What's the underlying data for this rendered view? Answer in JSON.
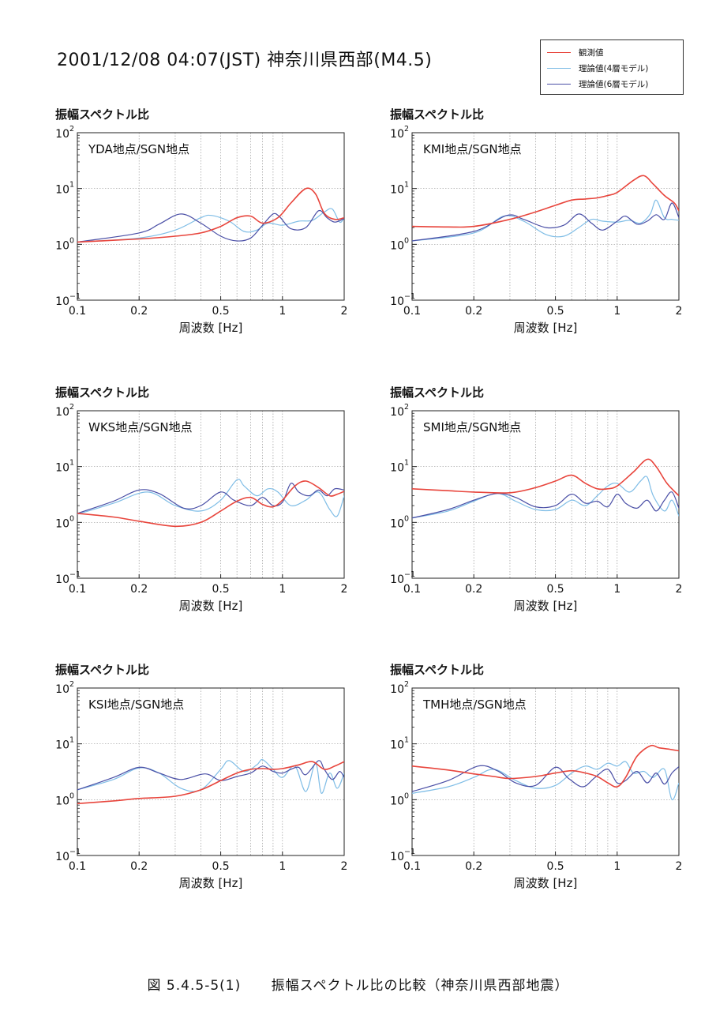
{
  "header": {
    "title": "2001/12/08  04:07(JST)  神奈川県西部(M4.5)"
  },
  "legend": [
    {
      "label": "観測値",
      "color": "#e8453c"
    },
    {
      "label": "理論値(4層モデル)",
      "color": "#7fbde6"
    },
    {
      "label": "理論値(6層モデル)",
      "color": "#4a4fa6"
    }
  ],
  "caption": "図 5.4.5-5(1)      振幅スペクトル比の比較（神奈川県西部地震）",
  "chart_data": [
    {
      "type": "line",
      "ylabel": "振幅スペクトル比",
      "xlabel": "周波数 [Hz]",
      "annotation": "YDA地点/SGN地点",
      "xscale": "log",
      "yscale": "log",
      "xlim": [
        0.1,
        2
      ],
      "ylim": [
        0.1,
        100
      ],
      "xticks": [
        0.1,
        0.2,
        0.5,
        1,
        2
      ],
      "xtick_labels": [
        "0.1",
        "0.2",
        "0.5",
        "1",
        "2"
      ],
      "ytick_labels": [
        "10",
        "10",
        "10",
        "10"
      ],
      "ytick_exponents": [
        "−1",
        "0",
        "1",
        "2"
      ],
      "grid": true,
      "series": [
        {
          "name": "観測値",
          "x": [
            0.1,
            0.2,
            0.3,
            0.4,
            0.5,
            0.6,
            0.7,
            0.8,
            0.95,
            1.1,
            1.3,
            1.45,
            1.6,
            1.8,
            2.0
          ],
          "y": [
            1.1,
            1.25,
            1.4,
            1.6,
            2.1,
            3.0,
            3.2,
            2.4,
            3.0,
            5.5,
            10.0,
            8.0,
            3.6,
            2.8,
            3.0
          ]
        },
        {
          "name": "理論値(4層モデル)",
          "x": [
            0.1,
            0.2,
            0.3,
            0.4,
            0.45,
            0.55,
            0.65,
            0.75,
            0.85,
            1.0,
            1.2,
            1.4,
            1.6,
            1.75,
            1.9,
            2.0
          ],
          "y": [
            1.1,
            1.3,
            1.8,
            3.0,
            3.3,
            2.6,
            1.7,
            1.8,
            2.4,
            2.2,
            2.6,
            2.7,
            3.8,
            4.3,
            2.5,
            3.0
          ]
        },
        {
          "name": "理論値(6層モデル)",
          "x": [
            0.1,
            0.2,
            0.25,
            0.32,
            0.4,
            0.5,
            0.6,
            0.7,
            0.8,
            0.9,
            0.97,
            1.1,
            1.3,
            1.5,
            1.65,
            1.8,
            2.0
          ],
          "y": [
            1.1,
            1.6,
            2.3,
            3.5,
            2.4,
            1.4,
            1.15,
            1.3,
            2.2,
            3.5,
            3.1,
            1.9,
            2.0,
            4.0,
            3.0,
            2.5,
            2.9
          ]
        }
      ]
    },
    {
      "type": "line",
      "ylabel": "振幅スペクトル比",
      "xlabel": "周波数 [Hz]",
      "annotation": "KMI地点/SGN地点",
      "xscale": "log",
      "yscale": "log",
      "xlim": [
        0.1,
        2
      ],
      "ylim": [
        0.1,
        100
      ],
      "xticks": [
        0.1,
        0.2,
        0.5,
        1,
        2
      ],
      "xtick_labels": [
        "0.1",
        "0.2",
        "0.5",
        "1",
        "2"
      ],
      "ytick_labels": [
        "10",
        "10",
        "10",
        "10"
      ],
      "ytick_exponents": [
        "−1",
        "0",
        "1",
        "2"
      ],
      "grid": true,
      "series": [
        {
          "name": "観測値",
          "x": [
            0.1,
            0.15,
            0.2,
            0.3,
            0.4,
            0.5,
            0.6,
            0.7,
            0.8,
            0.9,
            1.0,
            1.2,
            1.35,
            1.5,
            1.7,
            1.9,
            2.0
          ],
          "y": [
            2.1,
            2.05,
            2.1,
            2.8,
            3.8,
            5.0,
            6.2,
            6.5,
            6.8,
            7.5,
            8.5,
            14.0,
            17.0,
            12.0,
            7.5,
            5.5,
            4.0
          ]
        },
        {
          "name": "理論値(4層モデル)",
          "x": [
            0.1,
            0.2,
            0.28,
            0.35,
            0.45,
            0.55,
            0.65,
            0.75,
            0.85,
            1.0,
            1.15,
            1.3,
            1.45,
            1.55,
            1.7,
            1.85,
            2.0
          ],
          "y": [
            1.15,
            1.6,
            3.2,
            2.6,
            1.5,
            1.4,
            2.0,
            2.8,
            2.6,
            2.5,
            2.7,
            2.4,
            3.5,
            6.2,
            3.0,
            2.8,
            2.7
          ]
        },
        {
          "name": "理論値(6層モデル)",
          "x": [
            0.1,
            0.2,
            0.29,
            0.35,
            0.45,
            0.55,
            0.65,
            0.75,
            0.85,
            1.0,
            1.1,
            1.25,
            1.4,
            1.55,
            1.7,
            1.85,
            2.0
          ],
          "y": [
            1.15,
            1.7,
            3.3,
            2.8,
            2.0,
            2.2,
            3.5,
            2.4,
            1.8,
            2.6,
            3.2,
            2.3,
            2.6,
            3.4,
            2.8,
            5.5,
            3.0
          ]
        }
      ]
    },
    {
      "type": "line",
      "ylabel": "振幅スペクトル比",
      "xlabel": "周波数 [Hz]",
      "annotation": "WKS地点/SGN地点",
      "xscale": "log",
      "yscale": "log",
      "xlim": [
        0.1,
        2
      ],
      "ylim": [
        0.1,
        100
      ],
      "xticks": [
        0.1,
        0.2,
        0.5,
        1,
        2
      ],
      "xtick_labels": [
        "0.1",
        "0.2",
        "0.5",
        "1",
        "2"
      ],
      "ytick_labels": [
        "10",
        "10",
        "10",
        "10"
      ],
      "ytick_exponents": [
        "−1",
        "0",
        "1",
        "2"
      ],
      "grid": true,
      "series": [
        {
          "name": "観測値",
          "x": [
            0.1,
            0.15,
            0.2,
            0.3,
            0.4,
            0.5,
            0.6,
            0.7,
            0.8,
            0.9,
            1.0,
            1.15,
            1.3,
            1.5,
            1.7,
            1.85,
            2.0
          ],
          "y": [
            1.45,
            1.25,
            1.05,
            0.85,
            1.0,
            1.6,
            2.4,
            2.8,
            2.1,
            1.9,
            2.5,
            4.5,
            5.5,
            4.2,
            3.0,
            3.2,
            3.6
          ]
        },
        {
          "name": "理論値(4層モデル)",
          "x": [
            0.1,
            0.15,
            0.22,
            0.3,
            0.4,
            0.5,
            0.6,
            0.65,
            0.75,
            0.85,
            0.95,
            1.1,
            1.3,
            1.5,
            1.7,
            1.85,
            2.0
          ],
          "y": [
            1.4,
            2.2,
            3.5,
            2.0,
            1.6,
            2.5,
            5.8,
            4.5,
            3.0,
            4.0,
            3.5,
            2.0,
            2.5,
            3.5,
            1.7,
            1.3,
            3.0
          ]
        },
        {
          "name": "理論値(6層モデル)",
          "x": [
            0.1,
            0.15,
            0.2,
            0.25,
            0.33,
            0.4,
            0.5,
            0.58,
            0.7,
            0.8,
            0.9,
            1.0,
            1.1,
            1.2,
            1.35,
            1.5,
            1.65,
            1.8,
            2.0
          ],
          "y": [
            1.45,
            2.4,
            3.8,
            3.3,
            1.8,
            2.0,
            3.5,
            2.5,
            2.0,
            2.8,
            2.0,
            2.3,
            5.0,
            3.5,
            3.0,
            3.8,
            3.0,
            4.0,
            3.8
          ]
        }
      ]
    },
    {
      "type": "line",
      "ylabel": "振幅スペクトル比",
      "xlabel": "周波数 [Hz]",
      "annotation": "SMI地点/SGN地点",
      "xscale": "log",
      "yscale": "log",
      "xlim": [
        0.1,
        2
      ],
      "ylim": [
        0.1,
        100
      ],
      "xticks": [
        0.1,
        0.2,
        0.5,
        1,
        2
      ],
      "xtick_labels": [
        "0.1",
        "0.2",
        "0.5",
        "1",
        "2"
      ],
      "ytick_labels": [
        "10",
        "10",
        "10",
        "10"
      ],
      "ytick_exponents": [
        "−1",
        "0",
        "1",
        "2"
      ],
      "grid": true,
      "series": [
        {
          "name": "観測値",
          "x": [
            0.1,
            0.15,
            0.2,
            0.3,
            0.4,
            0.5,
            0.6,
            0.7,
            0.8,
            0.9,
            1.0,
            1.2,
            1.4,
            1.55,
            1.75,
            2.0
          ],
          "y": [
            4.0,
            3.7,
            3.5,
            3.4,
            4.2,
            5.5,
            7.0,
            5.0,
            4.0,
            4.0,
            4.5,
            8.0,
            13.5,
            10.0,
            5.0,
            3.0
          ]
        },
        {
          "name": "理論値(4層モデル)",
          "x": [
            0.1,
            0.15,
            0.2,
            0.26,
            0.32,
            0.4,
            0.5,
            0.6,
            0.7,
            0.8,
            0.9,
            1.0,
            1.15,
            1.3,
            1.4,
            1.5,
            1.7,
            1.85,
            2.0
          ],
          "y": [
            1.2,
            1.6,
            2.4,
            3.3,
            2.4,
            1.7,
            1.7,
            2.5,
            2.0,
            3.0,
            4.5,
            5.0,
            3.5,
            5.5,
            6.5,
            3.0,
            1.6,
            2.5,
            1.3
          ]
        },
        {
          "name": "理論値(6層モデル)",
          "x": [
            0.1,
            0.15,
            0.2,
            0.26,
            0.32,
            0.4,
            0.5,
            0.6,
            0.7,
            0.8,
            0.9,
            1.0,
            1.1,
            1.25,
            1.4,
            1.55,
            1.7,
            1.85,
            2.0
          ],
          "y": [
            1.2,
            1.7,
            2.5,
            3.3,
            2.8,
            1.9,
            2.0,
            3.2,
            2.2,
            2.4,
            1.9,
            3.2,
            2.2,
            1.8,
            2.5,
            1.6,
            2.5,
            3.5,
            1.8
          ]
        }
      ]
    },
    {
      "type": "line",
      "ylabel": "振幅スペクトル比",
      "xlabel": "周波数 [Hz]",
      "annotation": "KSI地点/SGN地点",
      "xscale": "log",
      "yscale": "log",
      "xlim": [
        0.1,
        2
      ],
      "ylim": [
        0.1,
        100
      ],
      "xticks": [
        0.1,
        0.2,
        0.5,
        1,
        2
      ],
      "xtick_labels": [
        "0.1",
        "0.2",
        "0.5",
        "1",
        "2"
      ],
      "ytick_labels": [
        "10",
        "10",
        "10",
        "10"
      ],
      "ytick_exponents": [
        "−1",
        "0",
        "1",
        "2"
      ],
      "grid": true,
      "series": [
        {
          "name": "観測値",
          "x": [
            0.1,
            0.15,
            0.2,
            0.3,
            0.4,
            0.5,
            0.6,
            0.7,
            0.8,
            0.9,
            1.0,
            1.2,
            1.4,
            1.6,
            1.8,
            2.0
          ],
          "y": [
            0.85,
            0.95,
            1.05,
            1.15,
            1.5,
            2.2,
            3.0,
            3.5,
            3.6,
            3.5,
            3.6,
            4.2,
            4.8,
            3.5,
            4.0,
            4.8
          ]
        },
        {
          "name": "理論値(4層モデル)",
          "x": [
            0.1,
            0.15,
            0.2,
            0.25,
            0.32,
            0.4,
            0.5,
            0.55,
            0.65,
            0.75,
            0.8,
            0.9,
            1.0,
            1.15,
            1.3,
            1.45,
            1.55,
            1.7,
            1.85,
            2.0
          ],
          "y": [
            1.5,
            2.3,
            3.7,
            3.0,
            1.6,
            1.5,
            3.5,
            5.0,
            3.2,
            4.2,
            5.2,
            3.5,
            2.5,
            4.0,
            1.4,
            4.5,
            1.3,
            3.0,
            1.6,
            3.0
          ]
        },
        {
          "name": "理論値(6層モデル)",
          "x": [
            0.1,
            0.15,
            0.2,
            0.25,
            0.32,
            0.42,
            0.5,
            0.6,
            0.7,
            0.8,
            0.9,
            1.0,
            1.1,
            1.2,
            1.3,
            1.5,
            1.6,
            1.75,
            1.9,
            2.0
          ],
          "y": [
            1.5,
            2.5,
            3.8,
            3.0,
            2.3,
            2.9,
            2.2,
            2.6,
            3.0,
            4.0,
            3.2,
            3.0,
            3.5,
            3.8,
            2.8,
            5.0,
            3.5,
            2.3,
            3.2,
            2.5
          ]
        }
      ]
    },
    {
      "type": "line",
      "ylabel": "振幅スペクトル比",
      "xlabel": "周波数 [Hz]",
      "annotation": "TMH地点/SGN地点",
      "xscale": "log",
      "yscale": "log",
      "xlim": [
        0.1,
        2
      ],
      "ylim": [
        0.1,
        100
      ],
      "xticks": [
        0.1,
        0.2,
        0.5,
        1,
        2
      ],
      "xtick_labels": [
        "0.1",
        "0.2",
        "0.5",
        "1",
        "2"
      ],
      "ytick_labels": [
        "10",
        "10",
        "10",
        "10"
      ],
      "ytick_exponents": [
        "−1",
        "0",
        "1",
        "2"
      ],
      "grid": true,
      "series": [
        {
          "name": "観測値",
          "x": [
            0.1,
            0.15,
            0.2,
            0.25,
            0.3,
            0.4,
            0.5,
            0.6,
            0.7,
            0.8,
            0.9,
            1.0,
            1.1,
            1.25,
            1.45,
            1.6,
            1.8,
            2.0
          ],
          "y": [
            4.0,
            3.4,
            2.9,
            2.6,
            2.4,
            2.6,
            3.0,
            3.3,
            3.0,
            2.6,
            2.0,
            1.7,
            2.5,
            6.0,
            9.2,
            8.5,
            8.0,
            7.5
          ]
        },
        {
          "name": "理論値(4層モデル)",
          "x": [
            0.1,
            0.15,
            0.2,
            0.25,
            0.32,
            0.4,
            0.5,
            0.6,
            0.7,
            0.8,
            0.9,
            1.0,
            1.1,
            1.2,
            1.35,
            1.5,
            1.7,
            1.85,
            2.0
          ],
          "y": [
            1.3,
            1.7,
            2.5,
            3.5,
            2.2,
            1.6,
            1.8,
            3.0,
            4.0,
            3.5,
            4.5,
            4.0,
            4.8,
            3.0,
            3.2,
            2.5,
            3.5,
            1.0,
            2.0
          ]
        },
        {
          "name": "理論値(6層モデル)",
          "x": [
            0.1,
            0.15,
            0.21,
            0.26,
            0.32,
            0.4,
            0.5,
            0.58,
            0.68,
            0.78,
            0.9,
            1.0,
            1.1,
            1.25,
            1.4,
            1.55,
            1.7,
            1.85,
            2.0
          ],
          "y": [
            1.4,
            2.2,
            4.0,
            3.3,
            2.0,
            1.8,
            3.8,
            2.4,
            1.7,
            2.5,
            3.5,
            2.0,
            2.2,
            3.2,
            2.0,
            3.0,
            1.9,
            3.0,
            3.9
          ]
        }
      ]
    }
  ]
}
